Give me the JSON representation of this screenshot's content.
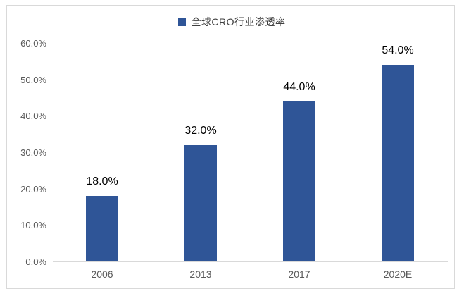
{
  "chart_data": {
    "type": "bar",
    "title": "",
    "legend": "全球CRO行业渗透率",
    "legend_position": "top-center",
    "categories": [
      "2006",
      "2013",
      "2017",
      "2020E"
    ],
    "values": [
      18.0,
      32.0,
      44.0,
      54.0
    ],
    "value_labels": [
      "18.0%",
      "32.0%",
      "44.0%",
      "54.0%"
    ],
    "xlabel": "",
    "ylabel": "",
    "ylim": [
      0,
      60
    ],
    "y_tick_step": 10,
    "y_tick_labels": [
      "0.0%",
      "10.0%",
      "20.0%",
      "30.0%",
      "40.0%",
      "50.0%",
      "60.0%"
    ],
    "grid": false
  },
  "colors": {
    "bar": "#2F5597",
    "axis_line": "#D9D9D9",
    "axis_text": "#595959",
    "data_label": "#000000",
    "frame_border": "#D9D9D9",
    "background": "#FFFFFF"
  }
}
